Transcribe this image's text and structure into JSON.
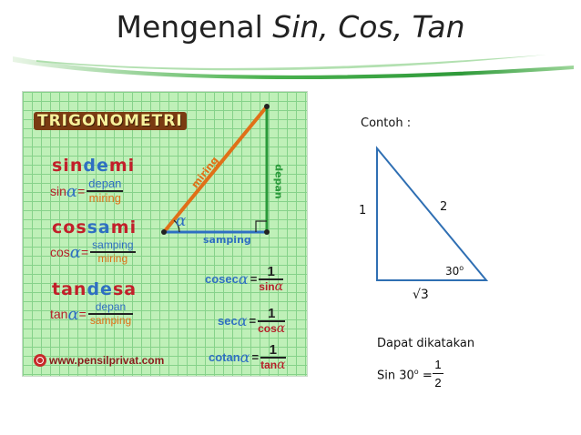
{
  "slide": {
    "title_main": "Mengenal ",
    "title_italic": "Sin, Cos, Tan",
    "accent_color": "#3aa84a"
  },
  "card": {
    "banner": "TRIGONOMETRI",
    "triangle_labels": {
      "hypotenuse": "miring",
      "opposite": "depan",
      "adjacent": "samping",
      "angle": "α"
    },
    "mnemonics": [
      {
        "parts": [
          "sin",
          "de",
          "mi"
        ],
        "func": "sin",
        "num": "depan",
        "den": "miring"
      },
      {
        "parts": [
          "cos",
          "sa",
          "mi"
        ],
        "func": "cos",
        "num": "samping",
        "den": "miring"
      },
      {
        "parts": [
          "tan",
          "de",
          "sa"
        ],
        "func": "tan",
        "num": "depan",
        "den": "samping"
      }
    ],
    "reciprocals": [
      {
        "func": "cosec",
        "num": "1",
        "den": "sin"
      },
      {
        "func": "sec",
        "num": "1",
        "den": "cos"
      },
      {
        "func": "cotan",
        "num": "1",
        "den": "tan"
      }
    ],
    "alpha": "α",
    "equals": "=",
    "website": "www.pensilprivat.com"
  },
  "example": {
    "heading": "Contoh :",
    "side_left": "1",
    "side_hyp": "2",
    "angle": "30",
    "angle_sup": "o",
    "side_bottom": "√3",
    "said": "Dapat dikatakan",
    "sin_label": "Sin 30",
    "sin_sup": "o",
    "sin_eq": " =",
    "frac_num": "1",
    "frac_den": "2"
  }
}
